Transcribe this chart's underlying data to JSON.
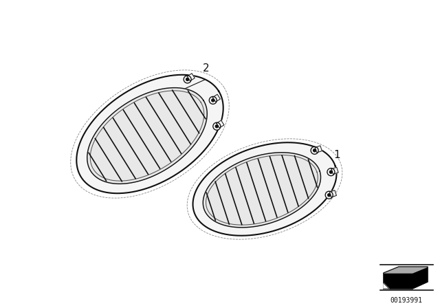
{
  "bg_color": "#ffffff",
  "label1": "1",
  "label2": "2",
  "catalog_number": "00193991",
  "fig_width": 6.4,
  "fig_height": 4.48,
  "dpi": 100,
  "line_color": "#111111",
  "fill_outer": "#f5f5f5",
  "fill_inner": "#e8e8e8",
  "fill_rim": "#f0f0f0",
  "mount_color": "#cccccc"
}
